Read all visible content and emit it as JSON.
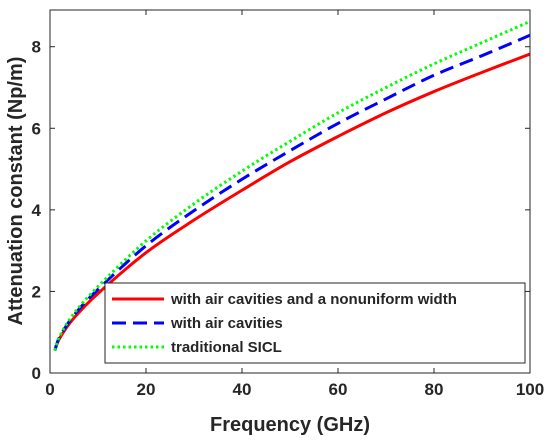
{
  "chart_data": {
    "type": "line",
    "title": "",
    "xlabel": "Frequency (GHz)",
    "ylabel": "Attenuation constant (Np/m)",
    "xlim": [
      0,
      100
    ],
    "ylim": [
      0,
      8.9
    ],
    "xticks": [
      0,
      20,
      40,
      60,
      80,
      100
    ],
    "yticks": [
      0,
      2,
      4,
      6,
      8
    ],
    "grid": false,
    "legend_position": "bottom-right",
    "x": [
      1,
      2,
      5,
      10,
      20,
      30,
      40,
      50,
      60,
      70,
      80,
      90,
      100
    ],
    "series": [
      {
        "name": "with air cavities and a nonuniform width",
        "color": "#ff0000",
        "style": "solid",
        "values": [
          0.55,
          0.85,
          1.35,
          1.95,
          2.95,
          3.75,
          4.48,
          5.18,
          5.8,
          6.38,
          6.9,
          7.37,
          7.82
        ]
      },
      {
        "name": "with air cavities",
        "color": "#0000ff",
        "style": "dashed",
        "values": [
          0.55,
          0.88,
          1.42,
          2.05,
          3.12,
          3.98,
          4.75,
          5.45,
          6.12,
          6.72,
          7.3,
          7.78,
          8.28
        ]
      },
      {
        "name": "traditional SICL",
        "color": "#00ff00",
        "style": "dotted",
        "values": [
          0.55,
          0.9,
          1.46,
          2.12,
          3.24,
          4.15,
          4.95,
          5.68,
          6.38,
          7.0,
          7.58,
          8.1,
          8.62
        ]
      }
    ]
  }
}
